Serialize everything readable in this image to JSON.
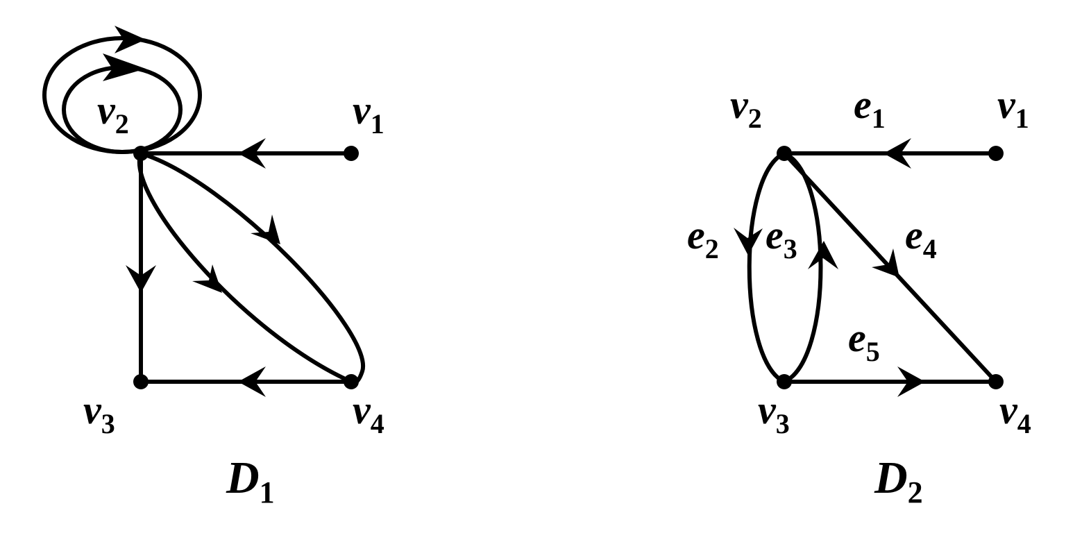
{
  "diagrams": [
    {
      "caption": {
        "base": "D",
        "sub": "1"
      },
      "vertices": {
        "v1": {
          "base": "v",
          "sub": "1"
        },
        "v2": {
          "base": "v",
          "sub": "2"
        },
        "v3": {
          "base": "v",
          "sub": "3"
        },
        "v4": {
          "base": "v",
          "sub": "4"
        }
      },
      "edges": [
        {
          "from": "v2",
          "to": "v2",
          "kind": "loop"
        },
        {
          "from": "v2",
          "to": "v2",
          "kind": "loop"
        },
        {
          "from": "v1",
          "to": "v2"
        },
        {
          "from": "v2",
          "to": "v3"
        },
        {
          "from": "v2",
          "to": "v4"
        },
        {
          "from": "v2",
          "to": "v4"
        },
        {
          "from": "v4",
          "to": "v3"
        }
      ]
    },
    {
      "caption": {
        "base": "D",
        "sub": "2"
      },
      "vertices": {
        "v1": {
          "base": "v",
          "sub": "1"
        },
        "v2": {
          "base": "v",
          "sub": "2"
        },
        "v3": {
          "base": "v",
          "sub": "3"
        },
        "v4": {
          "base": "v",
          "sub": "4"
        }
      },
      "edges": [
        {
          "id": "e1",
          "label": {
            "base": "e",
            "sub": "1"
          },
          "from": "v1",
          "to": "v2"
        },
        {
          "id": "e2",
          "label": {
            "base": "e",
            "sub": "2"
          },
          "from": "v2",
          "to": "v3"
        },
        {
          "id": "e3",
          "label": {
            "base": "e",
            "sub": "3"
          },
          "from": "v3",
          "to": "v2"
        },
        {
          "id": "e4",
          "label": {
            "base": "e",
            "sub": "4"
          },
          "from": "v2",
          "to": "v4"
        },
        {
          "id": "e5",
          "label": {
            "base": "e",
            "sub": "5"
          },
          "from": "v3",
          "to": "v4"
        }
      ]
    }
  ]
}
